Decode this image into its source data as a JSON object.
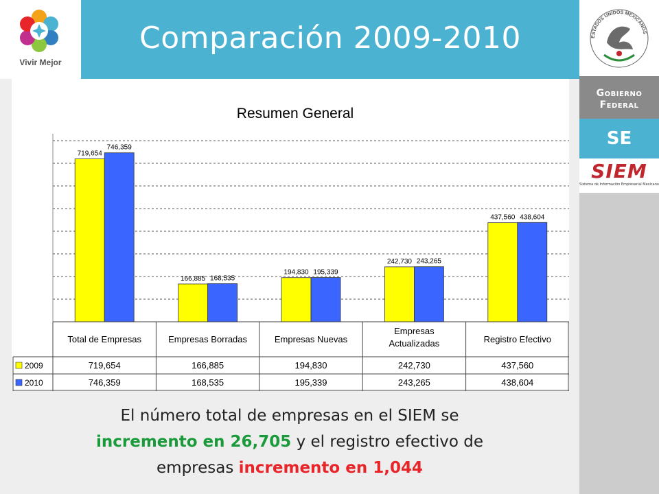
{
  "header": {
    "title": "Comparación 2009-2010",
    "logo_text": "Vivir Mejor"
  },
  "sidebar": {
    "seal_text": "ESTADOS UNIDOS MEXICANOS",
    "gobierno_line1": "Gobierno",
    "gobierno_line2": "Federal",
    "se_label": "SE",
    "siem_logo": "SIEM",
    "siem_sub": "Sistema de Información Empresarial Mexicano"
  },
  "chart_data": {
    "type": "bar",
    "title": "Resumen General",
    "categories": [
      "Total de Empresas",
      "Empresas Borradas",
      "Empresas Nuevas",
      "Empresas Actualizadas",
      "Registro Efectivo"
    ],
    "series": [
      {
        "name": "2009",
        "color": "#ffff00",
        "values": [
          719654,
          166885,
          194830,
          242730,
          437560
        ],
        "labels": [
          "719,654",
          "166,885",
          "194,830",
          "242,730",
          "437,560"
        ],
        "bar_labels": [
          "719,654",
          "166,885",
          "194,830",
          "242,730",
          "437,560"
        ]
      },
      {
        "name": "2010",
        "color": "#3a66ff",
        "values": [
          746359,
          168535,
          195339,
          243265,
          438604
        ],
        "labels": [
          "746,359",
          "168,535",
          "195,339",
          "243,265",
          "438,604"
        ],
        "bar_labels": [
          "746,359",
          "168,535",
          "195,339",
          "243,265",
          "438,604"
        ]
      }
    ],
    "ylim": [
      0,
      800000
    ],
    "grid": true,
    "legend": "data-table"
  },
  "summary": {
    "part1": "El número total de empresas en el SIEM se",
    "highlight1": "incremento en 26,705",
    "part2": " y el registro efectivo de",
    "part3": "empresas ",
    "highlight2": "incremento en 1,044"
  }
}
